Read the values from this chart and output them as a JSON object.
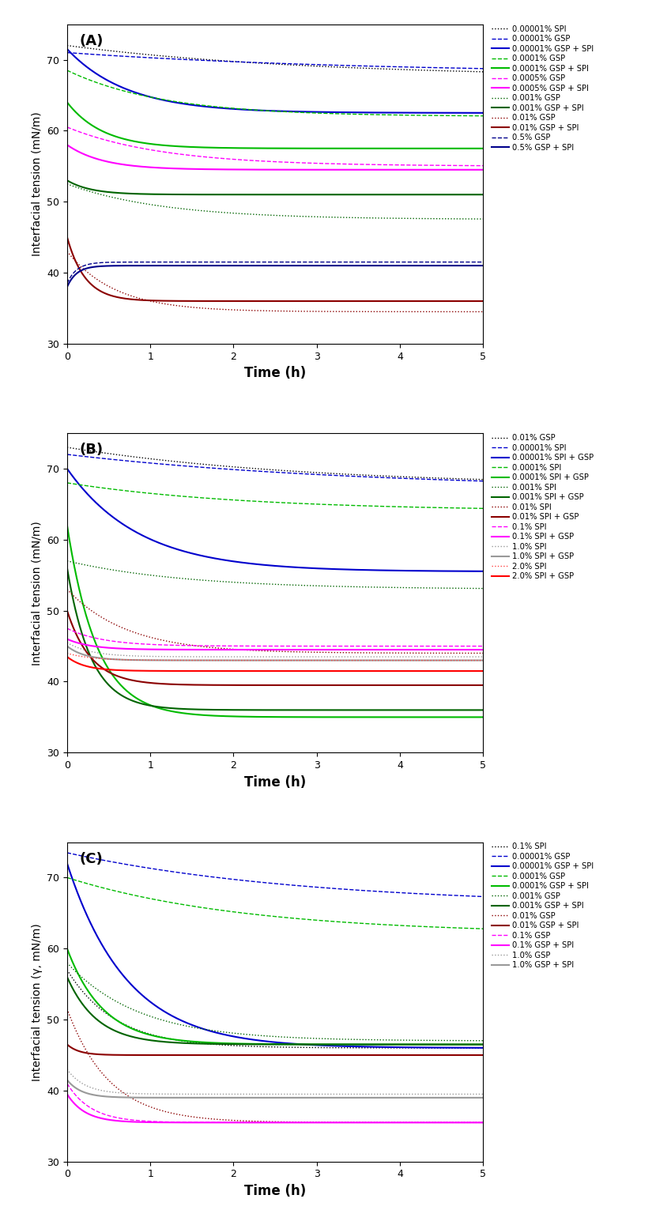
{
  "panels": [
    {
      "label": "A",
      "ylabel": "Interfacial tension (mN/m)",
      "ylim": [
        30,
        75
      ],
      "yticks": [
        30,
        40,
        50,
        60,
        70
      ],
      "series": [
        {
          "label": "0.00001% SPI",
          "color": "#000000",
          "ls": "dotted",
          "lw": 1.0,
          "y0": 72.0,
          "y1": 67.5,
          "half": 2.0
        },
        {
          "label": "0.00001% GSP",
          "color": "#0000CD",
          "ls": "dashed",
          "lw": 1.0,
          "y0": 71.0,
          "y1": 68.0,
          "half": 2.5
        },
        {
          "label": "0.00001% GSP + SPI",
          "color": "#0000CD",
          "ls": "solid",
          "lw": 1.5,
          "y0": 71.5,
          "y1": 62.5,
          "half": 0.5
        },
        {
          "label": "0.0001% GSP",
          "color": "#00BB00",
          "ls": "dashed",
          "lw": 1.0,
          "y0": 68.5,
          "y1": 62.0,
          "half": 0.8
        },
        {
          "label": "0.0001% GSP + SPI",
          "color": "#00BB00",
          "ls": "solid",
          "lw": 1.5,
          "y0": 64.0,
          "y1": 57.5,
          "half": 0.3
        },
        {
          "label": "0.0005% GSP",
          "color": "#FF00FF",
          "ls": "dashed",
          "lw": 1.0,
          "y0": 60.5,
          "y1": 55.0,
          "half": 0.8
        },
        {
          "label": "0.0005% GSP + SPI",
          "color": "#FF00FF",
          "ls": "solid",
          "lw": 1.5,
          "y0": 58.0,
          "y1": 54.5,
          "half": 0.3
        },
        {
          "label": "0.001% GSP",
          "color": "#006400",
          "ls": "dotted",
          "lw": 1.0,
          "y0": 52.5,
          "y1": 47.5,
          "half": 0.8
        },
        {
          "label": "0.001% GSP + SPI",
          "color": "#006400",
          "ls": "solid",
          "lw": 1.5,
          "y0": 53.0,
          "y1": 51.0,
          "half": 0.2
        },
        {
          "label": "0.01% GSP",
          "color": "#8B0000",
          "ls": "dotted",
          "lw": 1.0,
          "y0": 43.0,
          "y1": 34.5,
          "half": 0.4
        },
        {
          "label": "0.01% GSP + SPI",
          "color": "#8B0000",
          "ls": "solid",
          "lw": 1.5,
          "y0": 45.0,
          "y1": 36.0,
          "half": 0.15
        },
        {
          "label": "0.5% GSP",
          "color": "#00008B",
          "ls": "dashed",
          "lw": 1.0,
          "y0": 38.5,
          "y1": 41.5,
          "half": 0.08
        },
        {
          "label": "0.5% GSP + SPI",
          "color": "#00008B",
          "ls": "solid",
          "lw": 1.5,
          "y0": 38.0,
          "y1": 41.0,
          "half": 0.08
        }
      ]
    },
    {
      "label": "B",
      "ylabel": "Interfacial tension (mN/m)",
      "ylim": [
        30,
        75
      ],
      "yticks": [
        30,
        40,
        50,
        60,
        70
      ],
      "series": [
        {
          "label": "0.01% GSP",
          "color": "#000000",
          "ls": "dotted",
          "lw": 1.0,
          "y0": 73.0,
          "y1": 67.5,
          "half": 2.0
        },
        {
          "label": "0.00001% SPI",
          "color": "#0000CD",
          "ls": "dashed",
          "lw": 1.0,
          "y0": 72.0,
          "y1": 67.0,
          "half": 2.5
        },
        {
          "label": "0.00001% SPI + GSP",
          "color": "#0000CD",
          "ls": "solid",
          "lw": 1.5,
          "y0": 70.0,
          "y1": 55.5,
          "half": 0.6
        },
        {
          "label": "0.0001% SPI",
          "color": "#00BB00",
          "ls": "dashed",
          "lw": 1.0,
          "y0": 68.0,
          "y1": 64.0,
          "half": 1.5
        },
        {
          "label": "0.0001% SPI + GSP",
          "color": "#00BB00",
          "ls": "solid",
          "lw": 1.5,
          "y0": 62.0,
          "y1": 35.0,
          "half": 0.25
        },
        {
          "label": "0.001% SPI",
          "color": "#006400",
          "ls": "dotted",
          "lw": 1.0,
          "y0": 57.0,
          "y1": 53.0,
          "half": 1.0
        },
        {
          "label": "0.001% SPI + GSP",
          "color": "#006400",
          "ls": "solid",
          "lw": 1.5,
          "y0": 56.0,
          "y1": 36.0,
          "half": 0.2
        },
        {
          "label": "0.01% SPI",
          "color": "#8B0000",
          "ls": "dotted",
          "lw": 1.0,
          "y0": 53.0,
          "y1": 44.0,
          "half": 0.5
        },
        {
          "label": "0.01% SPI + GSP",
          "color": "#8B0000",
          "ls": "solid",
          "lw": 1.5,
          "y0": 50.0,
          "y1": 39.5,
          "half": 0.2
        },
        {
          "label": "0.1% SPI",
          "color": "#FF00FF",
          "ls": "dashed",
          "lw": 1.0,
          "y0": 47.5,
          "y1": 45.0,
          "half": 0.3
        },
        {
          "label": "0.1% SPI + GSP",
          "color": "#FF00FF",
          "ls": "solid",
          "lw": 1.5,
          "y0": 46.0,
          "y1": 44.5,
          "half": 0.2
        },
        {
          "label": "1.0% SPI",
          "color": "#999999",
          "ls": "dotted",
          "lw": 1.0,
          "y0": 45.5,
          "y1": 43.5,
          "half": 0.2
        },
        {
          "label": "1.0% SPI + GSP",
          "color": "#999999",
          "ls": "solid",
          "lw": 1.5,
          "y0": 45.0,
          "y1": 43.0,
          "half": 0.15
        },
        {
          "label": "2.0% SPI",
          "color": "#FF4444",
          "ls": "dotted",
          "lw": 1.0,
          "y0": 44.0,
          "y1": 43.0,
          "half": 0.2
        },
        {
          "label": "2.0% SPI + GSP",
          "color": "#FF0000",
          "ls": "solid",
          "lw": 1.5,
          "y0": 43.5,
          "y1": 41.5,
          "half": 0.15
        }
      ]
    },
    {
      "label": "C",
      "ylabel": "Interfacial tension (γ, mN/m)",
      "ylim": [
        30,
        75
      ],
      "yticks": [
        30,
        40,
        50,
        60,
        70
      ],
      "series": [
        {
          "label": "0.1% SPI",
          "color": "#000000",
          "ls": "dotted",
          "lw": 1.0,
          "y0": 57.0,
          "y1": 46.0,
          "half": 0.4
        },
        {
          "label": "0.00001% GSP",
          "color": "#0000CD",
          "ls": "dashed",
          "lw": 1.0,
          "y0": 73.5,
          "y1": 66.0,
          "half": 2.0
        },
        {
          "label": "0.00001% GSP + SPI",
          "color": "#0000CD",
          "ls": "solid",
          "lw": 1.5,
          "y0": 72.0,
          "y1": 46.0,
          "half": 0.5
        },
        {
          "label": "0.0001% GSP",
          "color": "#00BB00",
          "ls": "dashed",
          "lw": 1.0,
          "y0": 70.0,
          "y1": 62.0,
          "half": 1.5
        },
        {
          "label": "0.0001% GSP + SPI",
          "color": "#00BB00",
          "ls": "solid",
          "lw": 1.5,
          "y0": 60.0,
          "y1": 46.5,
          "half": 0.3
        },
        {
          "label": "0.001% GSP",
          "color": "#006400",
          "ls": "dotted",
          "lw": 1.0,
          "y0": 58.0,
          "y1": 47.0,
          "half": 0.6
        },
        {
          "label": "0.001% GSP + SPI",
          "color": "#006400",
          "ls": "solid",
          "lw": 1.5,
          "y0": 56.0,
          "y1": 46.5,
          "half": 0.25
        },
        {
          "label": "0.01% GSP",
          "color": "#8B0000",
          "ls": "dotted",
          "lw": 1.0,
          "y0": 51.5,
          "y1": 35.5,
          "half": 0.35
        },
        {
          "label": "0.01% GSP + SPI",
          "color": "#8B0000",
          "ls": "solid",
          "lw": 1.5,
          "y0": 46.5,
          "y1": 45.0,
          "half": 0.1
        },
        {
          "label": "0.1% GSP",
          "color": "#FF00FF",
          "ls": "dashed",
          "lw": 1.0,
          "y0": 41.0,
          "y1": 35.5,
          "half": 0.2
        },
        {
          "label": "0.1% GSP + SPI",
          "color": "#FF00FF",
          "ls": "solid",
          "lw": 1.5,
          "y0": 39.5,
          "y1": 35.5,
          "half": 0.15
        },
        {
          "label": "1.0% GSP",
          "color": "#999999",
          "ls": "dotted",
          "lw": 1.0,
          "y0": 43.0,
          "y1": 39.5,
          "half": 0.15
        },
        {
          "label": "1.0% GSP + SPI",
          "color": "#999999",
          "ls": "solid",
          "lw": 1.5,
          "y0": 41.5,
          "y1": 39.0,
          "half": 0.12
        }
      ]
    }
  ],
  "xlabel": "Time (h)",
  "xlim": [
    0,
    5
  ],
  "xticks": [
    0,
    1,
    2,
    3,
    4,
    5
  ],
  "figsize": [
    8.49,
    15.31
  ],
  "dpi": 100
}
